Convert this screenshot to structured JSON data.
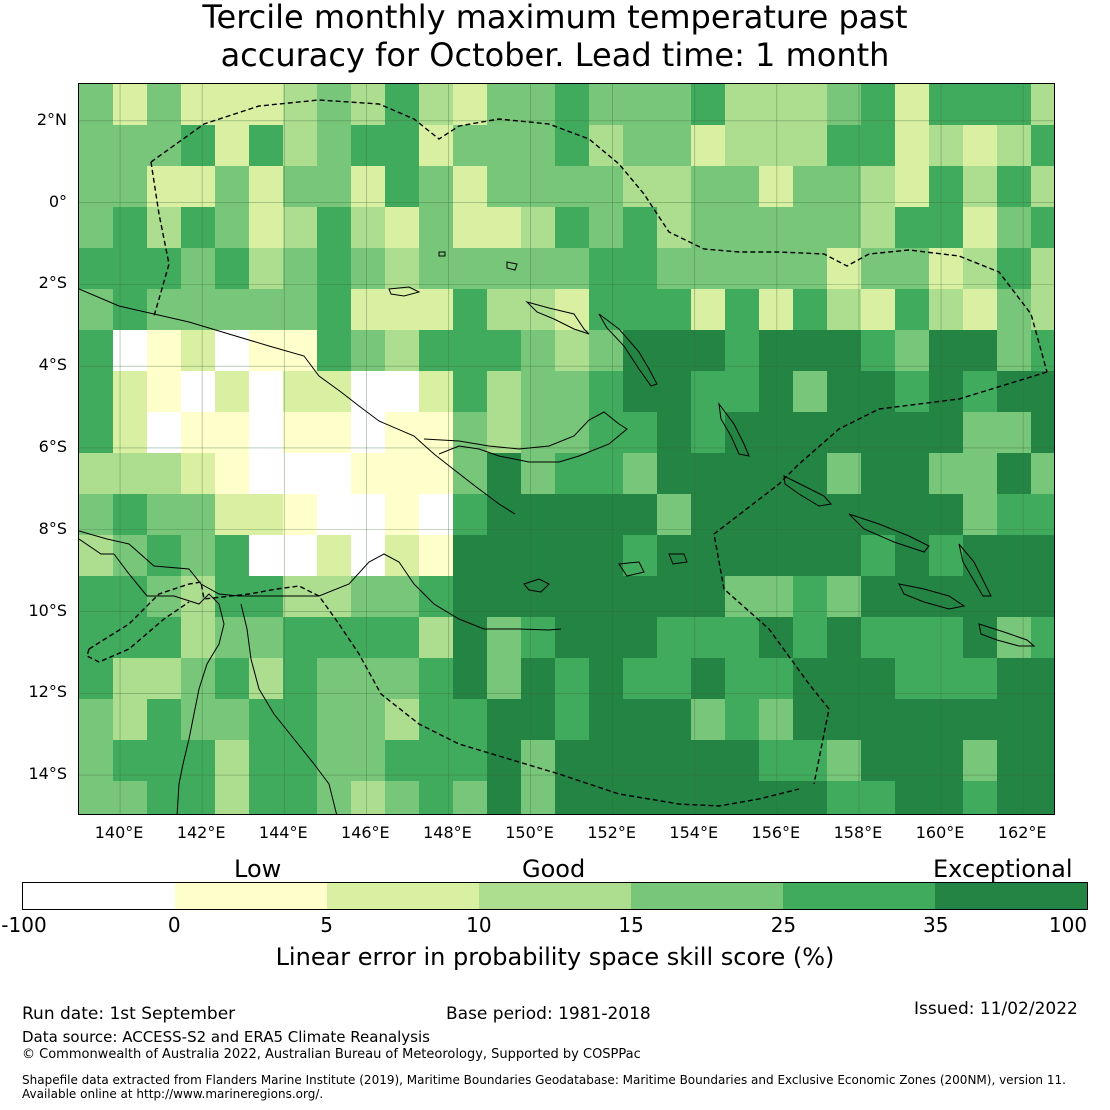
{
  "title": {
    "line1": "Tercile monthly maximum temperature past",
    "line2": "accuracy for October. Lead time: 1 month"
  },
  "map": {
    "lon_range": [
      139.0,
      162.8
    ],
    "lat_range": [
      -15.0,
      2.9
    ],
    "lat_ticks": [
      {
        "value": 2,
        "label": "2°N"
      },
      {
        "value": 0,
        "label": "0°"
      },
      {
        "value": -2,
        "label": "2°S"
      },
      {
        "value": -4,
        "label": "4°S"
      },
      {
        "value": -6,
        "label": "6°S"
      },
      {
        "value": -8,
        "label": "8°S"
      },
      {
        "value": -10,
        "label": "10°S"
      },
      {
        "value": -12,
        "label": "12°S"
      },
      {
        "value": -14,
        "label": "14°S"
      }
    ],
    "lon_ticks": [
      {
        "value": 140,
        "label": "140°E"
      },
      {
        "value": 142,
        "label": "142°E"
      },
      {
        "value": 144,
        "label": "144°E"
      },
      {
        "value": 146,
        "label": "146°E"
      },
      {
        "value": 148,
        "label": "148°E"
      },
      {
        "value": 150,
        "label": "150°E"
      },
      {
        "value": 152,
        "label": "152°E"
      },
      {
        "value": 154,
        "label": "154°E"
      },
      {
        "value": 156,
        "label": "156°E"
      },
      {
        "value": 158,
        "label": "158°E"
      },
      {
        "value": 160,
        "label": "160°E"
      },
      {
        "value": 162,
        "label": "162°E"
      }
    ],
    "grid": true,
    "boundary_style": "dashed",
    "coastline_color": "#000000"
  },
  "colorbar": {
    "words": {
      "low": "Low",
      "good": "Good",
      "exceptional": "Exceptional"
    },
    "bins": [
      {
        "from": -100,
        "to": 0,
        "color": "#ffffff"
      },
      {
        "from": 0,
        "to": 5,
        "color": "#ffffcc"
      },
      {
        "from": 5,
        "to": 10,
        "color": "#d9f0a3"
      },
      {
        "from": 10,
        "to": 15,
        "color": "#addd8e"
      },
      {
        "from": 15,
        "to": 25,
        "color": "#78c679"
      },
      {
        "from": 25,
        "to": 35,
        "color": "#41ab5d"
      },
      {
        "from": 35,
        "to": 100,
        "color": "#238443"
      }
    ],
    "tick_labels": [
      "-100",
      "0",
      "5",
      "10",
      "15",
      "25",
      "35",
      "100"
    ],
    "label": "Linear error in probability space skill score (%)"
  },
  "footer": {
    "run_date": "Run date: 1st September",
    "base_period": "Base period: 1981-2018",
    "issued": "Issued: 11/02/2022",
    "data_source": "Data source: ACCESS-S2 and ERA5 Climate Reanalysis",
    "copyright": "© Commonwealth of Australia 2022, Australian Bureau of Meteorology, Supported by COSPPac",
    "shapefile_line1": "Shapefile data extracted from Flanders Marine Institute (2019), Maritime Boundaries Geodatabase: Maritime Boundaries and Exclusive Economic Zones (200NM), version 11.",
    "shapefile_line2": "Available online at http://www.marineregions.org/."
  }
}
